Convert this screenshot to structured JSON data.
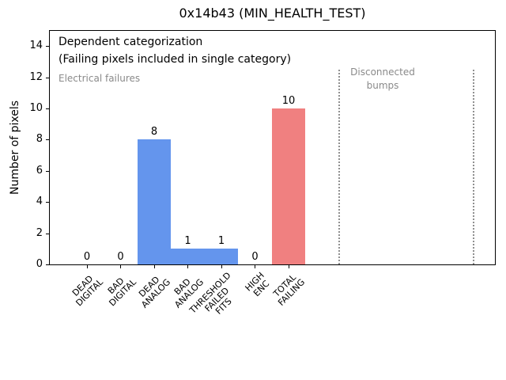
{
  "figure": {
    "title": "0x14b43 (MIN_HEALTH_TEST)"
  },
  "chart_data": {
    "type": "bar",
    "title": "0x14b43 (MIN_HEALTH_TEST)",
    "xlabel": "",
    "ylabel": "Number of pixels",
    "ylim": [
      0,
      15.1
    ],
    "yticks": [
      0,
      2,
      4,
      6,
      8,
      10,
      12,
      14
    ],
    "grid": false,
    "legend": "none",
    "categories": [
      "DEAD\nDIGITAL",
      "BAD\nDIGITAL",
      "DEAD\nANALOG",
      "BAD\nANALOG",
      "THRESHOLD\nFAILED\nFITS",
      "HIGH\nENC",
      "TOTAL\nFAILING"
    ],
    "values": [
      0,
      0,
      8,
      1,
      1,
      0,
      10
    ],
    "value_labels": [
      "0",
      "0",
      "8",
      "1",
      "1",
      "0",
      "10"
    ],
    "bar_colors": [
      "#6495ed",
      "#6495ed",
      "#6495ed",
      "#6495ed",
      "#6495ed",
      "#6495ed",
      "#f08080"
    ],
    "colors": {
      "electrical_bar": "#6495ed",
      "total_failing_bar": "#f08080",
      "gray_text": "#8a8a8a",
      "reference_line": "#909090",
      "axis": "#000000"
    },
    "annotations": [
      {
        "text": "Dependent categorization",
        "color": "#000000"
      },
      {
        "text": "(Failing pixels included in single category)",
        "color": "#000000"
      },
      {
        "text": "Electrical failures",
        "color": "#8a8a8a"
      },
      {
        "text": "Disconnected\nbumps",
        "color": "#8a8a8a"
      }
    ],
    "reference_lines": {
      "style": "dotted",
      "color": "#909090",
      "category_positions": [
        7.5,
        11.5
      ],
      "top_value": 12.5
    }
  }
}
